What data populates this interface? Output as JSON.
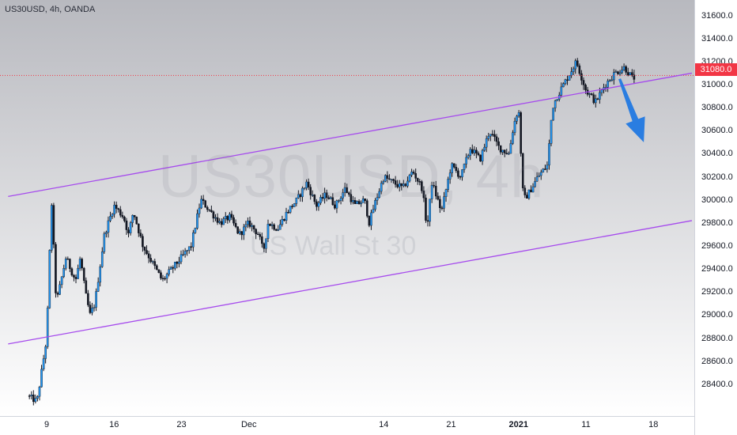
{
  "symbol_text": "US30USD, 4h, OANDA",
  "watermark": {
    "main": "US30USD, 4h",
    "sub": "US Wall St 30"
  },
  "last_price_label": "31080.0",
  "colors": {
    "background_top": "#b8b9bf",
    "background_bottom": "#ffffff",
    "channel": "#a64bed",
    "arrow": "#2a7de1",
    "candle_up_fill": "#2196f3",
    "candle_body_dark": "#131722",
    "last_price": "#f23645"
  },
  "chart_data": {
    "type": "candlestick",
    "title": "US30USD, 4h, OANDA",
    "price_range": [
      28200,
      31700
    ],
    "yticks": [
      "31600.0",
      "31400.0",
      "31200.0",
      "31000.0",
      "30800.0",
      "30600.0",
      "30400.0",
      "30200.0",
      "30000.0",
      "29800.0",
      "29600.0",
      "29400.0",
      "29200.0",
      "29000.0",
      "28800.0",
      "28600.0",
      "28400.0"
    ],
    "xticks": [
      {
        "label": "9",
        "bold": false
      },
      {
        "label": "16",
        "bold": false
      },
      {
        "label": "23",
        "bold": false
      },
      {
        "label": "Dec",
        "bold": false
      },
      {
        "label": "14",
        "bold": false
      },
      {
        "label": "21",
        "bold": false
      },
      {
        "label": "2021",
        "bold": true
      },
      {
        "label": "11",
        "bold": false
      },
      {
        "label": "18",
        "bold": false
      }
    ],
    "last_price": 31080.0,
    "price_path": [
      [
        0.0,
        28300
      ],
      [
        1.0,
        28250
      ],
      [
        2.0,
        28800
      ],
      [
        2.5,
        30000
      ],
      [
        3.0,
        29100
      ],
      [
        4.0,
        29500
      ],
      [
        5.0,
        29300
      ],
      [
        5.5,
        29500
      ],
      [
        6.0,
        29200
      ],
      [
        6.5,
        29000
      ],
      [
        7.0,
        29100
      ],
      [
        8.0,
        29700
      ],
      [
        9.0,
        29950
      ],
      [
        10.0,
        29850
      ],
      [
        10.5,
        29700
      ],
      [
        11.0,
        29900
      ],
      [
        12.0,
        29600
      ],
      [
        13.0,
        29450
      ],
      [
        14.0,
        29300
      ],
      [
        15.0,
        29400
      ],
      [
        16.0,
        29500
      ],
      [
        17.0,
        29600
      ],
      [
        18.0,
        30000
      ],
      [
        19.0,
        29900
      ],
      [
        20.0,
        29800
      ],
      [
        21.0,
        29850
      ],
      [
        22.0,
        29700
      ],
      [
        23.0,
        29800
      ],
      [
        24.0,
        29700
      ],
      [
        24.5,
        29550
      ],
      [
        25.0,
        29800
      ],
      [
        26.0,
        29750
      ],
      [
        27.0,
        29900
      ],
      [
        28.0,
        30000
      ],
      [
        29.0,
        30150
      ],
      [
        30.0,
        29950
      ],
      [
        31.0,
        30050
      ],
      [
        32.0,
        29950
      ],
      [
        33.0,
        30100
      ],
      [
        34.0,
        29950
      ],
      [
        35.0,
        30000
      ],
      [
        35.5,
        29800
      ],
      [
        36.0,
        29950
      ],
      [
        37.0,
        30200
      ],
      [
        38.0,
        30150
      ],
      [
        39.0,
        30100
      ],
      [
        40.0,
        30250
      ],
      [
        41.0,
        30100
      ],
      [
        41.5,
        29750
      ],
      [
        42.0,
        30150
      ],
      [
        43.0,
        29900
      ],
      [
        44.0,
        30300
      ],
      [
        45.0,
        30200
      ],
      [
        46.0,
        30450
      ],
      [
        47.0,
        30350
      ],
      [
        48.0,
        30600
      ],
      [
        49.0,
        30450
      ],
      [
        50.0,
        30400
      ],
      [
        50.5,
        30650
      ],
      [
        51.0,
        30800
      ],
      [
        51.5,
        30000
      ],
      [
        52.0,
        30050
      ],
      [
        53.0,
        30200
      ],
      [
        54.0,
        30300
      ],
      [
        54.5,
        30800
      ],
      [
        55.0,
        30900
      ],
      [
        56.0,
        31050
      ],
      [
        57.0,
        31200
      ],
      [
        58.0,
        30950
      ],
      [
        59.0,
        30850
      ],
      [
        60.0,
        31000
      ],
      [
        61.0,
        31100
      ],
      [
        62.0,
        31150
      ],
      [
        62.8,
        31060
      ]
    ],
    "candle_count": 300,
    "day_span": [
      0,
      63
    ],
    "xtick_days": [
      2,
      9,
      16,
      23,
      37,
      44,
      51,
      58,
      65
    ],
    "channel": {
      "upper": {
        "from": [
          -2.0,
          30030
        ],
        "to": [
          69.0,
          31100
        ]
      },
      "lower": {
        "from": [
          -2.0,
          28750
        ],
        "to": [
          69.0,
          29820
        ]
      }
    },
    "arrow": {
      "from": [
        61.5,
        31050
      ],
      "to": [
        64.0,
        30500
      ]
    }
  }
}
